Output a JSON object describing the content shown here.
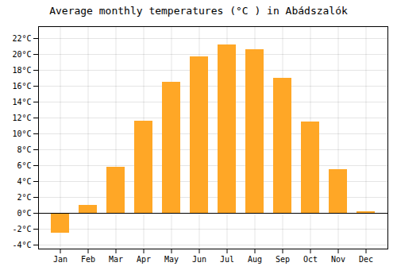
{
  "chart_data": {
    "type": "bar",
    "title": "Average monthly temperatures (°C ) in Abádszalók",
    "categories": [
      "Jan",
      "Feb",
      "Mar",
      "Apr",
      "May",
      "Jun",
      "Jul",
      "Aug",
      "Sep",
      "Oct",
      "Nov",
      "Dec"
    ],
    "values": [
      -2.5,
      1.0,
      5.8,
      11.6,
      16.5,
      19.7,
      21.2,
      20.6,
      17.0,
      11.5,
      5.5,
      0.2
    ],
    "color": "#FFA726",
    "ylim": [
      -4.5,
      23.5
    ],
    "yticks": [
      {
        "value": -4,
        "label": "-4°C"
      },
      {
        "value": -2,
        "label": "-2°C"
      },
      {
        "value": 0,
        "label": "0°C"
      },
      {
        "value": 2,
        "label": "2°C"
      },
      {
        "value": 4,
        "label": "4°C"
      },
      {
        "value": 6,
        "label": "6°C"
      },
      {
        "value": 8,
        "label": "8°C"
      },
      {
        "value": 10,
        "label": "10°C"
      },
      {
        "value": 12,
        "label": "12°C"
      },
      {
        "value": 14,
        "label": "14°C"
      },
      {
        "value": 16,
        "label": "16°C"
      },
      {
        "value": 18,
        "label": "18°C"
      },
      {
        "value": 20,
        "label": "20°C"
      },
      {
        "value": 22,
        "label": "22°C"
      }
    ],
    "grid": true
  }
}
